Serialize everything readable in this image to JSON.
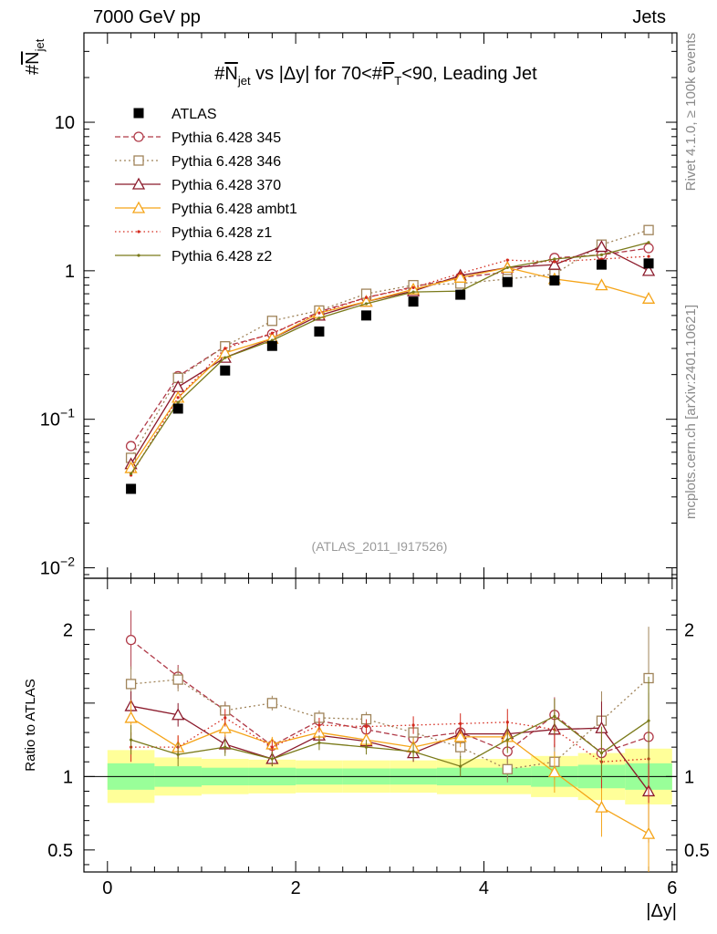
{
  "header": {
    "left": "7000 GeV pp",
    "right": "Jets"
  },
  "side_text": {
    "top": "Rivet 4.1.0, ≥ 100k events",
    "bottom": "mcplots.cern.ch [arXiv:2401.10621]"
  },
  "chart_data": {
    "type": "scatter",
    "title": "#N_jet vs |Δy| for 70<#P_T<90, Leading Jet",
    "title_parts": {
      "a": "#",
      "b": "N",
      "c": "jet",
      "d": " vs |Δy| for 70<#",
      "e": "P",
      "f": "T",
      "g": "<90, Leading Jet"
    },
    "ylabel_main": {
      "a": "#",
      "b": "N",
      "c": "jet"
    },
    "ylabel_ratio": "Ratio to ATLAS",
    "xlabel": "|Δy|",
    "watermark": "(ATLAS_2011_I917526)",
    "xlim": [
      -0.25,
      6.05
    ],
    "ylim_main_log": [
      0.0085,
      40
    ],
    "ylim_ratio": [
      0.35,
      2.35
    ],
    "x_ticks": [
      "0",
      "2",
      "4",
      "6"
    ],
    "x_tick_values": [
      0,
      2,
      4,
      6
    ],
    "y_ticks_main": [
      {
        "v": 10,
        "m": "10",
        "e": ""
      },
      {
        "v": 1,
        "m": "1",
        "e": ""
      },
      {
        "v": 0.1,
        "m": "10",
        "e": "−1"
      },
      {
        "v": 0.01,
        "m": "10",
        "e": "−2"
      }
    ],
    "y_ticks_ratio": [
      {
        "v": 2,
        "t": "2"
      },
      {
        "v": 1,
        "t": "1"
      },
      {
        "v": 0.5,
        "t": "0.5"
      }
    ],
    "x": [
      0.25,
      0.75,
      1.25,
      1.75,
      2.25,
      2.75,
      3.25,
      3.75,
      4.25,
      4.75,
      5.25,
      5.75
    ],
    "bin_edges": [
      0,
      0.5,
      1.0,
      1.5,
      2.0,
      2.5,
      3.0,
      3.5,
      4.0,
      4.5,
      5.0,
      5.5,
      6.0
    ],
    "ratio_band_green": [
      0.09,
      0.07,
      0.06,
      0.06,
      0.055,
      0.055,
      0.055,
      0.06,
      0.06,
      0.07,
      0.08,
      0.09
    ],
    "ratio_band_yellow": [
      0.18,
      0.13,
      0.12,
      0.115,
      0.11,
      0.11,
      0.11,
      0.12,
      0.12,
      0.14,
      0.16,
      0.19
    ],
    "series": [
      {
        "name": "ATLAS",
        "color": "#000000",
        "marker": "square_filled",
        "dash": "",
        "values": [
          0.034,
          0.118,
          0.213,
          0.312,
          0.39,
          0.5,
          0.62,
          0.69,
          0.84,
          0.86,
          1.1,
          1.12
        ],
        "ratio": [
          1,
          1,
          1,
          1,
          1,
          1,
          1,
          1,
          1,
          1,
          1,
          1
        ]
      },
      {
        "name": "Pythia 6.428 345",
        "color": "#b03a48",
        "marker": "circle_open",
        "dash": "6,3",
        "values": [
          0.066,
          0.195,
          0.31,
          0.375,
          0.53,
          0.66,
          0.78,
          0.9,
          0.98,
          1.22,
          1.28,
          1.42
        ],
        "ratio": [
          1.93,
          1.68,
          1.45,
          1.21,
          1.38,
          1.32,
          1.26,
          1.3,
          1.17,
          1.42,
          1.16,
          1.27
        ],
        "ratio_err": [
          0.2,
          0.08,
          0.06,
          0.05,
          0.05,
          0.05,
          0.06,
          0.07,
          0.08,
          0.12,
          0.15,
          0.3
        ]
      },
      {
        "name": "Pythia 6.428 346",
        "color": "#a0845a",
        "marker": "square_open",
        "dash": "2,3",
        "values": [
          0.055,
          0.19,
          0.31,
          0.46,
          0.54,
          0.7,
          0.8,
          0.82,
          0.88,
          0.95,
          1.5,
          1.88
        ],
        "ratio": [
          1.63,
          1.66,
          1.45,
          1.5,
          1.4,
          1.39,
          1.3,
          1.2,
          1.05,
          1.1,
          1.38,
          1.67
        ],
        "ratio_err": [
          0.12,
          0.08,
          0.06,
          0.05,
          0.05,
          0.05,
          0.06,
          0.07,
          0.09,
          0.12,
          0.2,
          0.35
        ]
      },
      {
        "name": "Pythia 6.428 370",
        "color": "#8b1a2b",
        "marker": "triangle_open",
        "dash": "",
        "values": [
          0.05,
          0.165,
          0.26,
          0.35,
          0.5,
          0.62,
          0.73,
          0.93,
          1.05,
          1.1,
          1.45,
          1.0
        ],
        "ratio": [
          1.48,
          1.42,
          1.22,
          1.12,
          1.28,
          1.24,
          1.16,
          1.29,
          1.29,
          1.32,
          1.33,
          0.9
        ],
        "ratio_err": [
          0.1,
          0.08,
          0.06,
          0.05,
          0.05,
          0.05,
          0.06,
          0.07,
          0.09,
          0.12,
          0.18,
          0.35
        ]
      },
      {
        "name": "Pythia 6.428 ambt1",
        "color": "#f5a418",
        "marker": "triangle_open",
        "dash": "",
        "values": [
          0.047,
          0.14,
          0.28,
          0.35,
          0.52,
          0.62,
          0.75,
          0.9,
          1.05,
          0.88,
          0.8,
          0.65
        ],
        "ratio": [
          1.4,
          1.2,
          1.33,
          1.22,
          1.3,
          1.25,
          1.2,
          1.27,
          1.27,
          1.03,
          0.79,
          0.61
        ],
        "ratio_err": [
          0.12,
          0.08,
          0.06,
          0.05,
          0.05,
          0.05,
          0.06,
          0.07,
          0.09,
          0.14,
          0.2,
          0.28
        ]
      },
      {
        "name": "Pythia 6.428 z1",
        "color": "#d42a1e",
        "marker": "dot",
        "dash": "1.5,3",
        "values": [
          0.042,
          0.14,
          0.3,
          0.38,
          0.52,
          0.66,
          0.77,
          0.96,
          1.18,
          1.15,
          1.2,
          1.25
        ],
        "ratio": [
          1.2,
          1.2,
          1.4,
          1.2,
          1.35,
          1.34,
          1.35,
          1.36,
          1.37,
          1.32,
          1.1,
          1.12
        ],
        "ratio_err": [
          0.1,
          0.08,
          0.06,
          0.05,
          0.05,
          0.05,
          0.06,
          0.07,
          0.09,
          0.12,
          0.18,
          0.3
        ]
      },
      {
        "name": "Pythia 6.428 z2",
        "color": "#7a7a1a",
        "marker": "dot",
        "dash": "",
        "values": [
          0.043,
          0.13,
          0.26,
          0.34,
          0.48,
          0.6,
          0.72,
          0.73,
          1.05,
          1.2,
          1.28,
          1.55
        ],
        "ratio": [
          1.25,
          1.15,
          1.2,
          1.12,
          1.23,
          1.2,
          1.17,
          1.07,
          1.25,
          1.41,
          1.16,
          1.38
        ],
        "ratio_err": [
          0.1,
          0.08,
          0.06,
          0.05,
          0.05,
          0.05,
          0.06,
          0.07,
          0.09,
          0.12,
          0.18,
          0.3
        ]
      }
    ]
  }
}
